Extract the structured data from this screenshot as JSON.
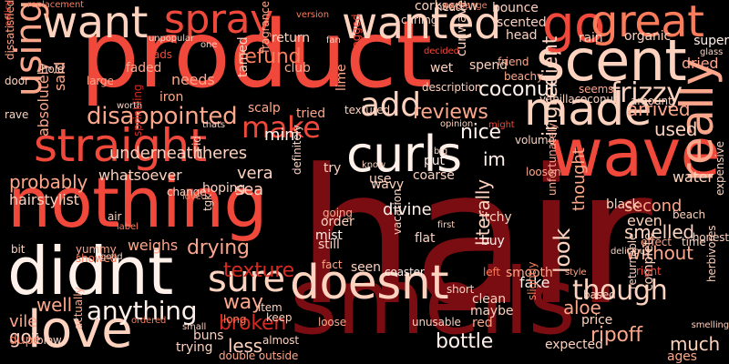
{
  "palette": {
    "background": "#000000",
    "colors": [
      "#7a0d12",
      "#a81519",
      "#d42a23",
      "#f0493b",
      "#fb7c5b",
      "#fca78b",
      "#fdd2bf",
      "#fff0ea"
    ]
  },
  "words": [
    {
      "t": "hair"
    },
    {
      "t": "product"
    },
    {
      "t": "smells"
    },
    {
      "t": "nothing"
    },
    {
      "t": "didnt"
    },
    {
      "t": "wave"
    },
    {
      "t": "scent"
    },
    {
      "t": "straight"
    },
    {
      "t": "want"
    },
    {
      "t": "spray"
    },
    {
      "t": "wanted"
    },
    {
      "t": "go"
    },
    {
      "t": "great"
    },
    {
      "t": "made"
    },
    {
      "t": "love"
    },
    {
      "t": "doesnt"
    },
    {
      "t": "curls"
    },
    {
      "t": "really"
    },
    {
      "t": "add"
    },
    {
      "t": "sure"
    },
    {
      "t": "using"
    },
    {
      "t": "anything"
    },
    {
      "t": "make"
    },
    {
      "t": "disappointed"
    },
    {
      "t": "frizzy"
    },
    {
      "t": "texture"
    },
    {
      "t": "though"
    },
    {
      "t": "coconut"
    },
    {
      "t": "refund"
    },
    {
      "t": "reviews"
    },
    {
      "t": "nice"
    },
    {
      "t": "drying"
    },
    {
      "t": "broken"
    },
    {
      "t": "bottle"
    },
    {
      "t": "arrived"
    },
    {
      "t": "used"
    },
    {
      "t": "look"
    },
    {
      "t": "literally"
    },
    {
      "t": "without"
    },
    {
      "t": "ingredient"
    },
    {
      "t": "smelled"
    },
    {
      "t": "mini"
    },
    {
      "t": "well"
    },
    {
      "t": "probably"
    },
    {
      "t": "hairstylist"
    },
    {
      "t": "underneath"
    },
    {
      "t": "theres"
    },
    {
      "t": "way"
    },
    {
      "t": "less"
    },
    {
      "t": "much"
    },
    {
      "t": "im"
    },
    {
      "t": "divine"
    },
    {
      "t": "second"
    },
    {
      "t": "water"
    },
    {
      "t": "sea"
    },
    {
      "t": "vera"
    },
    {
      "t": "whatsoever"
    },
    {
      "t": "hoping"
    },
    {
      "t": "needs"
    },
    {
      "t": "tried"
    },
    {
      "t": "said"
    },
    {
      "t": "absolutely"
    },
    {
      "t": "got"
    },
    {
      "t": "vile"
    },
    {
      "t": "dupe"
    },
    {
      "t": "weighs"
    },
    {
      "t": "fake"
    },
    {
      "t": "aloe"
    },
    {
      "t": "ripoff"
    },
    {
      "t": "even"
    },
    {
      "t": "bounce"
    },
    {
      "t": "scented"
    },
    {
      "t": "spend"
    },
    {
      "t": "dried"
    },
    {
      "t": "corkscrew"
    },
    {
      "t": "curling"
    },
    {
      "t": "heat"
    },
    {
      "t": "head"
    },
    {
      "t": "rain"
    },
    {
      "t": "organic"
    },
    {
      "t": "super"
    },
    {
      "t": "faded"
    },
    {
      "t": "iron"
    },
    {
      "t": "club"
    },
    {
      "t": "return"
    },
    {
      "t": "scalp"
    },
    {
      "t": "description"
    },
    {
      "t": "textured"
    },
    {
      "t": "wet"
    },
    {
      "t": "bagged"
    },
    {
      "t": "fragrance"
    },
    {
      "t": "sprinkling"
    },
    {
      "t": "tamed"
    },
    {
      "t": "curlwave"
    },
    {
      "t": "friend"
    },
    {
      "t": "beachy"
    },
    {
      "t": "vanillacoconut"
    },
    {
      "t": "amount"
    },
    {
      "t": "seems"
    },
    {
      "t": "volume"
    },
    {
      "t": "coarse"
    },
    {
      "t": "put"
    },
    {
      "t": "try"
    },
    {
      "t": "definitely"
    },
    {
      "t": "use"
    },
    {
      "t": "wavy"
    },
    {
      "t": "going"
    },
    {
      "t": "order"
    },
    {
      "t": "mist"
    },
    {
      "t": "still"
    },
    {
      "t": "flat"
    },
    {
      "t": "itchy"
    },
    {
      "t": "buy"
    },
    {
      "t": "vacation"
    },
    {
      "t": "seen"
    },
    {
      "t": "coaster"
    },
    {
      "t": "left"
    },
    {
      "t": "smooth"
    },
    {
      "t": "short"
    },
    {
      "t": "clean"
    },
    {
      "t": "maybe"
    },
    {
      "t": "red"
    },
    {
      "t": "expected"
    },
    {
      "t": "price"
    },
    {
      "t": "ages"
    },
    {
      "t": "complete"
    },
    {
      "t": "herbivores"
    },
    {
      "t": "expensive"
    },
    {
      "t": "beach"
    },
    {
      "t": "honest"
    },
    {
      "t": "effect"
    },
    {
      "t": "time"
    },
    {
      "t": "thought"
    },
    {
      "t": "unfortunately"
    },
    {
      "t": "loosen"
    },
    {
      "t": "black"
    },
    {
      "t": "change"
    },
    {
      "t": "item"
    },
    {
      "t": "keep"
    },
    {
      "t": "almost"
    },
    {
      "t": "double outside"
    },
    {
      "t": "trying"
    },
    {
      "t": "buns"
    },
    {
      "t": "blow"
    },
    {
      "t": "actually"
    },
    {
      "t": "yummy"
    },
    {
      "t": "showed"
    },
    {
      "t": "bit"
    },
    {
      "t": "air"
    },
    {
      "t": "door"
    },
    {
      "t": "dissatisfied"
    },
    {
      "t": "rave"
    },
    {
      "t": "large"
    },
    {
      "t": "hold"
    },
    {
      "t": "policy"
    },
    {
      "t": "replacement"
    },
    {
      "t": "unpopular"
    },
    {
      "t": "one"
    },
    {
      "t": "version"
    },
    {
      "t": "exchange"
    },
    {
      "t": "glass"
    },
    {
      "t": "smelling"
    },
    {
      "t": "loved"
    },
    {
      "t": "tgk"
    },
    {
      "t": "id"
    },
    {
      "t": "fact"
    },
    {
      "t": "long"
    },
    {
      "t": "loose"
    },
    {
      "t": "unusable"
    },
    {
      "t": "slightly"
    },
    {
      "t": "returnable"
    },
    {
      "t": "based"
    },
    {
      "t": "right"
    },
    {
      "t": "style"
    },
    {
      "t": "delicious"
    },
    {
      "t": "know"
    },
    {
      "t": "big"
    },
    {
      "t": "first"
    },
    {
      "t": "opinion"
    },
    {
      "t": "might"
    },
    {
      "t": "label"
    },
    {
      "t": "small"
    },
    {
      "t": "good"
    },
    {
      "t": "ordered"
    },
    {
      "t": "worth"
    },
    {
      "t": "lime"
    },
    {
      "t": "fan"
    },
    {
      "t": "thats"
    },
    {
      "t": "decided"
    },
    {
      "t": "ads"
    }
  ]
}
